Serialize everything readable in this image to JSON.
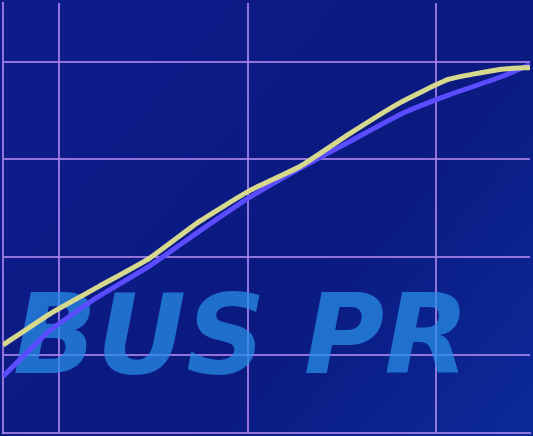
{
  "chart_data": {
    "type": "line",
    "x": [
      0.7,
      0.95,
      1.21,
      1.48,
      1.74,
      2.01,
      2.28,
      2.54,
      2.81,
      3.07,
      3.34,
      3.5
    ],
    "series": [
      {
        "color": "#d6d88e",
        "values": [
          1.1,
          1.42,
          1.7,
          1.99,
          2.36,
          2.68,
          2.93,
          3.26,
          3.58,
          3.82,
          3.92,
          3.94
        ]
      },
      {
        "color": "#5b4cff",
        "values": [
          0.78,
          1.25,
          1.6,
          1.91,
          2.26,
          2.61,
          2.91,
          3.18,
          3.46,
          3.66,
          3.84,
          3.97
        ]
      }
    ],
    "xlim": [
      0.7,
      3.5
    ],
    "xticks": [
      1,
      2,
      3
    ],
    "ylim": [
      0.2,
      4.6
    ],
    "yticks": [
      1,
      2,
      3,
      4
    ],
    "grid": true,
    "tick_labels": false,
    "annotations": [
      "BUS PR"
    ]
  }
}
